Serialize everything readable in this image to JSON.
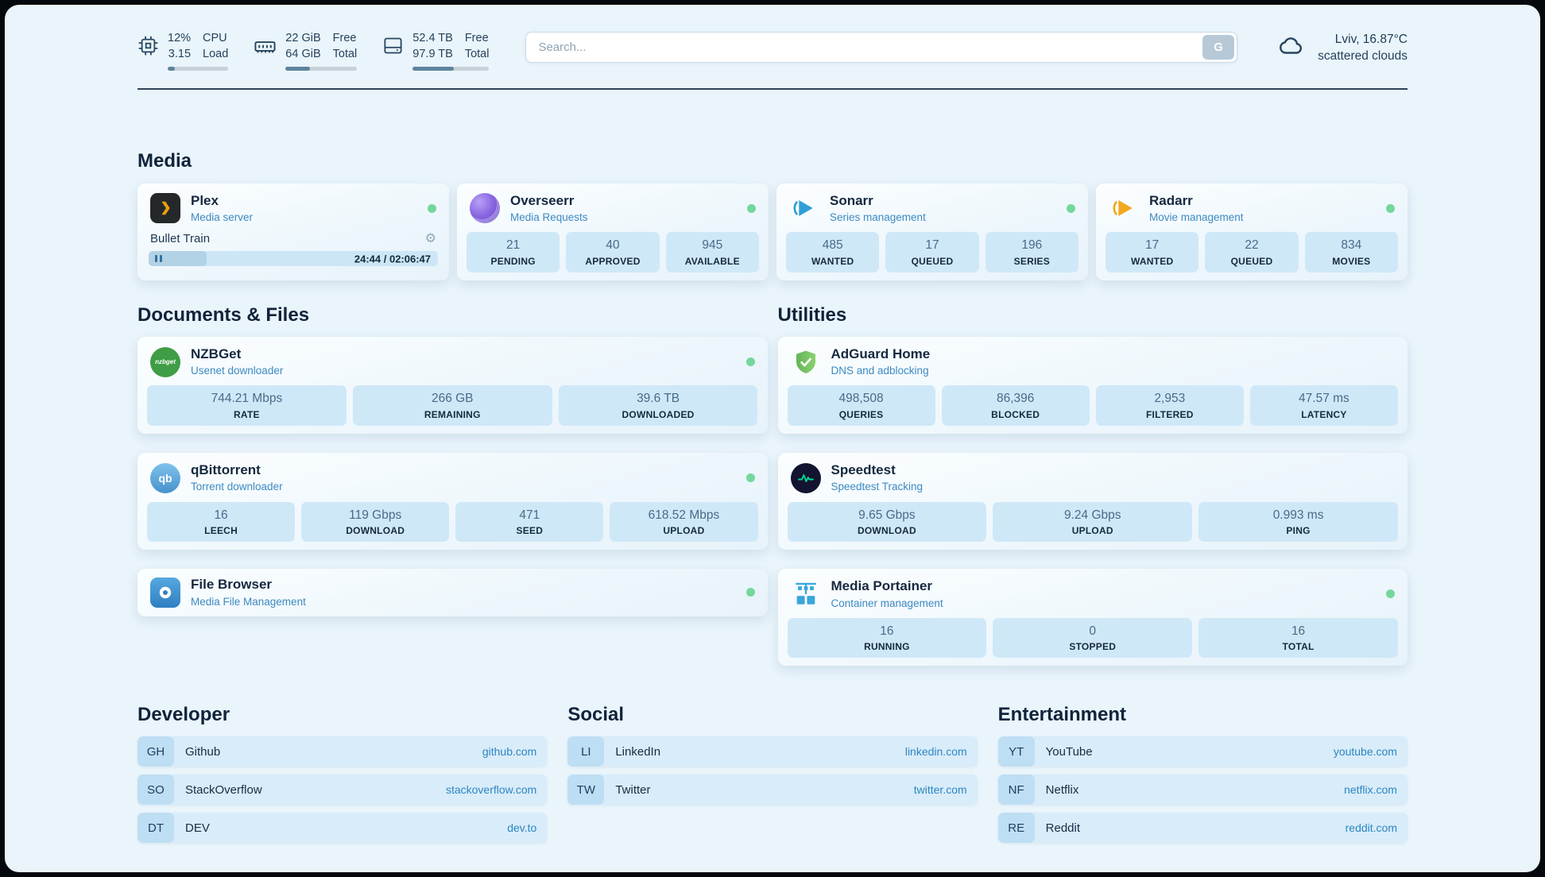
{
  "topbar": {
    "cpu": {
      "percent": "12%",
      "load": "3.15",
      "label_top": "CPU",
      "label_bottom": "Load",
      "bar_pct": 12
    },
    "memory": {
      "free": "22 GiB",
      "total": "64 GiB",
      "label_top": "Free",
      "label_bottom": "Total",
      "bar_pct": 34
    },
    "disk": {
      "free": "52.4 TB",
      "total": "97.9 TB",
      "label_top": "Free",
      "label_bottom": "Total",
      "bar_pct": 54
    },
    "search": {
      "placeholder": "Search...",
      "button_label": "G"
    },
    "weather": {
      "location": "Lviv, 16.87°C",
      "condition": "scattered clouds"
    }
  },
  "icons": {
    "gear": "⚙"
  },
  "sections": {
    "media": {
      "title": "Media",
      "plex": {
        "name": "Plex",
        "desc": "Media server",
        "online": true,
        "now_playing": "Bullet Train",
        "time": "24:44 / 02:06:47",
        "progress_pct": 20
      },
      "overseerr": {
        "name": "Overseerr",
        "desc": "Media Requests",
        "online": true,
        "stats": [
          {
            "value": "21",
            "label": "PENDING"
          },
          {
            "value": "40",
            "label": "APPROVED"
          },
          {
            "value": "945",
            "label": "AVAILABLE"
          }
        ]
      },
      "sonarr": {
        "name": "Sonarr",
        "desc": "Series management",
        "online": true,
        "stats": [
          {
            "value": "485",
            "label": "WANTED"
          },
          {
            "value": "17",
            "label": "QUEUED"
          },
          {
            "value": "196",
            "label": "SERIES"
          }
        ]
      },
      "radarr": {
        "name": "Radarr",
        "desc": "Movie management",
        "online": true,
        "stats": [
          {
            "value": "17",
            "label": "WANTED"
          },
          {
            "value": "22",
            "label": "QUEUED"
          },
          {
            "value": "834",
            "label": "MOVIES"
          }
        ]
      }
    },
    "documents": {
      "title": "Documents & Files",
      "nzbget": {
        "name": "NZBGet",
        "desc": "Usenet downloader",
        "icon_text": "nzbget",
        "online": true,
        "stats": [
          {
            "value": "744.21 Mbps",
            "label": "RATE"
          },
          {
            "value": "266 GB",
            "label": "REMAINING"
          },
          {
            "value": "39.6 TB",
            "label": "DOWNLOADED"
          }
        ]
      },
      "qbittorrent": {
        "name": "qBittorrent",
        "desc": "Torrent downloader",
        "icon_text": "qb",
        "online": true,
        "stats": [
          {
            "value": "16",
            "label": "LEECH"
          },
          {
            "value": "119 Gbps",
            "label": "DOWNLOAD"
          },
          {
            "value": "471",
            "label": "SEED"
          },
          {
            "value": "618.52 Mbps",
            "label": "UPLOAD"
          }
        ]
      },
      "filebrowser": {
        "name": "File Browser",
        "desc": "Media File Management",
        "online": true
      }
    },
    "utilities": {
      "title": "Utilities",
      "adguard": {
        "name": "AdGuard Home",
        "desc": "DNS and adblocking",
        "online": false,
        "stats": [
          {
            "value": "498,508",
            "label": "QUERIES"
          },
          {
            "value": "86,396",
            "label": "BLOCKED"
          },
          {
            "value": "2,953",
            "label": "FILTERED"
          },
          {
            "value": "47.57 ms",
            "label": "LATENCY"
          }
        ]
      },
      "speedtest": {
        "name": "Speedtest",
        "desc": "Speedtest Tracking",
        "online": false,
        "stats": [
          {
            "value": "9.65 Gbps",
            "label": "DOWNLOAD"
          },
          {
            "value": "9.24 Gbps",
            "label": "UPLOAD"
          },
          {
            "value": "0.993 ms",
            "label": "PING"
          }
        ]
      },
      "portainer": {
        "name": "Media Portainer",
        "desc": "Container management",
        "online": true,
        "stats": [
          {
            "value": "16",
            "label": "RUNNING"
          },
          {
            "value": "0",
            "label": "STOPPED"
          },
          {
            "value": "16",
            "label": "TOTAL"
          }
        ]
      }
    },
    "developer": {
      "title": "Developer",
      "links": [
        {
          "abbr": "GH",
          "name": "Github",
          "url": "github.com"
        },
        {
          "abbr": "SO",
          "name": "StackOverflow",
          "url": "stackoverflow.com"
        },
        {
          "abbr": "DT",
          "name": "DEV",
          "url": "dev.to"
        }
      ]
    },
    "social": {
      "title": "Social",
      "links": [
        {
          "abbr": "LI",
          "name": "LinkedIn",
          "url": "linkedin.com"
        },
        {
          "abbr": "TW",
          "name": "Twitter",
          "url": "twitter.com"
        }
      ]
    },
    "entertainment": {
      "title": "Entertainment",
      "links": [
        {
          "abbr": "YT",
          "name": "YouTube",
          "url": "youtube.com"
        },
        {
          "abbr": "NF",
          "name": "Netflix",
          "url": "netflix.com"
        },
        {
          "abbr": "RE",
          "name": "Reddit",
          "url": "reddit.com"
        }
      ]
    }
  }
}
